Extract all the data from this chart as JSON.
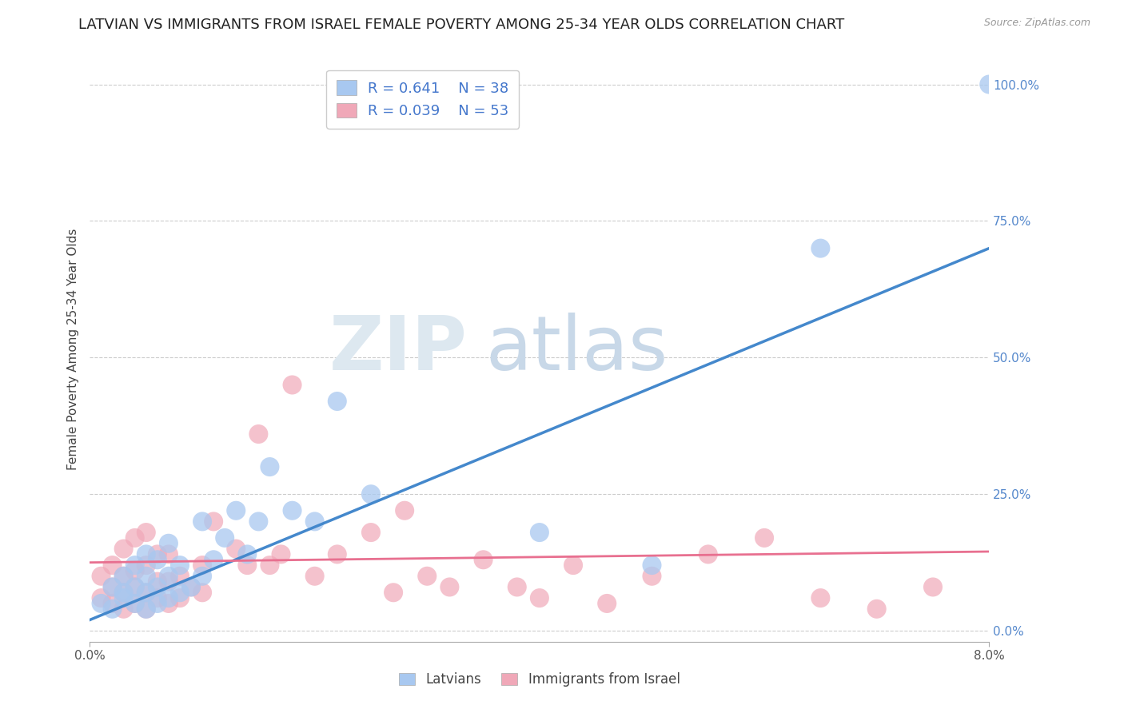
{
  "title": "LATVIAN VS IMMIGRANTS FROM ISRAEL FEMALE POVERTY AMONG 25-34 YEAR OLDS CORRELATION CHART",
  "source": "Source: ZipAtlas.com",
  "xlabel_latvians": "Latvians",
  "xlabel_israel": "Immigrants from Israel",
  "ylabel": "Female Poverty Among 25-34 Year Olds",
  "xlim": [
    0.0,
    0.08
  ],
  "ylim": [
    -0.02,
    1.05
  ],
  "yticks": [
    0.0,
    0.25,
    0.5,
    0.75,
    1.0
  ],
  "ytick_labels": [
    "0.0%",
    "25.0%",
    "50.0%",
    "75.0%",
    "100.0%"
  ],
  "xtick_labels": [
    "0.0%",
    "8.0%"
  ],
  "xticks": [
    0.0,
    0.08
  ],
  "legend_R1": "R = 0.641",
  "legend_N1": "N = 38",
  "legend_R2": "R = 0.039",
  "legend_N2": "N = 53",
  "color_latvian": "#a8c8f0",
  "color_israel": "#f0a8b8",
  "color_line1": "#4488cc",
  "color_line2": "#e87090",
  "latvian_x": [
    0.001,
    0.002,
    0.002,
    0.003,
    0.003,
    0.003,
    0.004,
    0.004,
    0.004,
    0.005,
    0.005,
    0.005,
    0.005,
    0.006,
    0.006,
    0.006,
    0.007,
    0.007,
    0.007,
    0.008,
    0.008,
    0.009,
    0.01,
    0.01,
    0.011,
    0.012,
    0.013,
    0.014,
    0.015,
    0.016,
    0.018,
    0.02,
    0.022,
    0.025,
    0.04,
    0.05,
    0.065,
    0.08
  ],
  "latvian_y": [
    0.05,
    0.04,
    0.08,
    0.06,
    0.07,
    0.1,
    0.05,
    0.08,
    0.12,
    0.04,
    0.07,
    0.1,
    0.14,
    0.05,
    0.08,
    0.13,
    0.06,
    0.1,
    0.16,
    0.07,
    0.12,
    0.08,
    0.1,
    0.2,
    0.13,
    0.17,
    0.22,
    0.14,
    0.2,
    0.3,
    0.22,
    0.2,
    0.42,
    0.25,
    0.18,
    0.12,
    0.7,
    1.0
  ],
  "israel_x": [
    0.001,
    0.001,
    0.002,
    0.002,
    0.002,
    0.003,
    0.003,
    0.003,
    0.003,
    0.004,
    0.004,
    0.004,
    0.004,
    0.005,
    0.005,
    0.005,
    0.005,
    0.006,
    0.006,
    0.006,
    0.007,
    0.007,
    0.007,
    0.008,
    0.008,
    0.009,
    0.01,
    0.01,
    0.011,
    0.013,
    0.014,
    0.015,
    0.016,
    0.017,
    0.018,
    0.02,
    0.022,
    0.025,
    0.027,
    0.028,
    0.03,
    0.032,
    0.035,
    0.038,
    0.04,
    0.043,
    0.046,
    0.05,
    0.055,
    0.06,
    0.065,
    0.07,
    0.075
  ],
  "israel_y": [
    0.06,
    0.1,
    0.05,
    0.08,
    0.12,
    0.04,
    0.07,
    0.1,
    0.15,
    0.05,
    0.08,
    0.11,
    0.17,
    0.04,
    0.07,
    0.12,
    0.18,
    0.06,
    0.09,
    0.14,
    0.05,
    0.09,
    0.14,
    0.06,
    0.1,
    0.08,
    0.07,
    0.12,
    0.2,
    0.15,
    0.12,
    0.36,
    0.12,
    0.14,
    0.45,
    0.1,
    0.14,
    0.18,
    0.07,
    0.22,
    0.1,
    0.08,
    0.13,
    0.08,
    0.06,
    0.12,
    0.05,
    0.1,
    0.14,
    0.17,
    0.06,
    0.04,
    0.08
  ],
  "latvian_line_x0": 0.0,
  "latvian_line_y0": 0.02,
  "latvian_line_x1": 0.08,
  "latvian_line_y1": 0.7,
  "israel_line_x0": 0.0,
  "israel_line_y0": 0.125,
  "israel_line_x1": 0.08,
  "israel_line_y1": 0.145,
  "bg_color": "#ffffff",
  "grid_color": "#cccccc",
  "title_fontsize": 13,
  "axis_label_fontsize": 11,
  "tick_fontsize": 11,
  "watermark_zip_color": "#dde8f0",
  "watermark_atlas_color": "#c8d8e8"
}
